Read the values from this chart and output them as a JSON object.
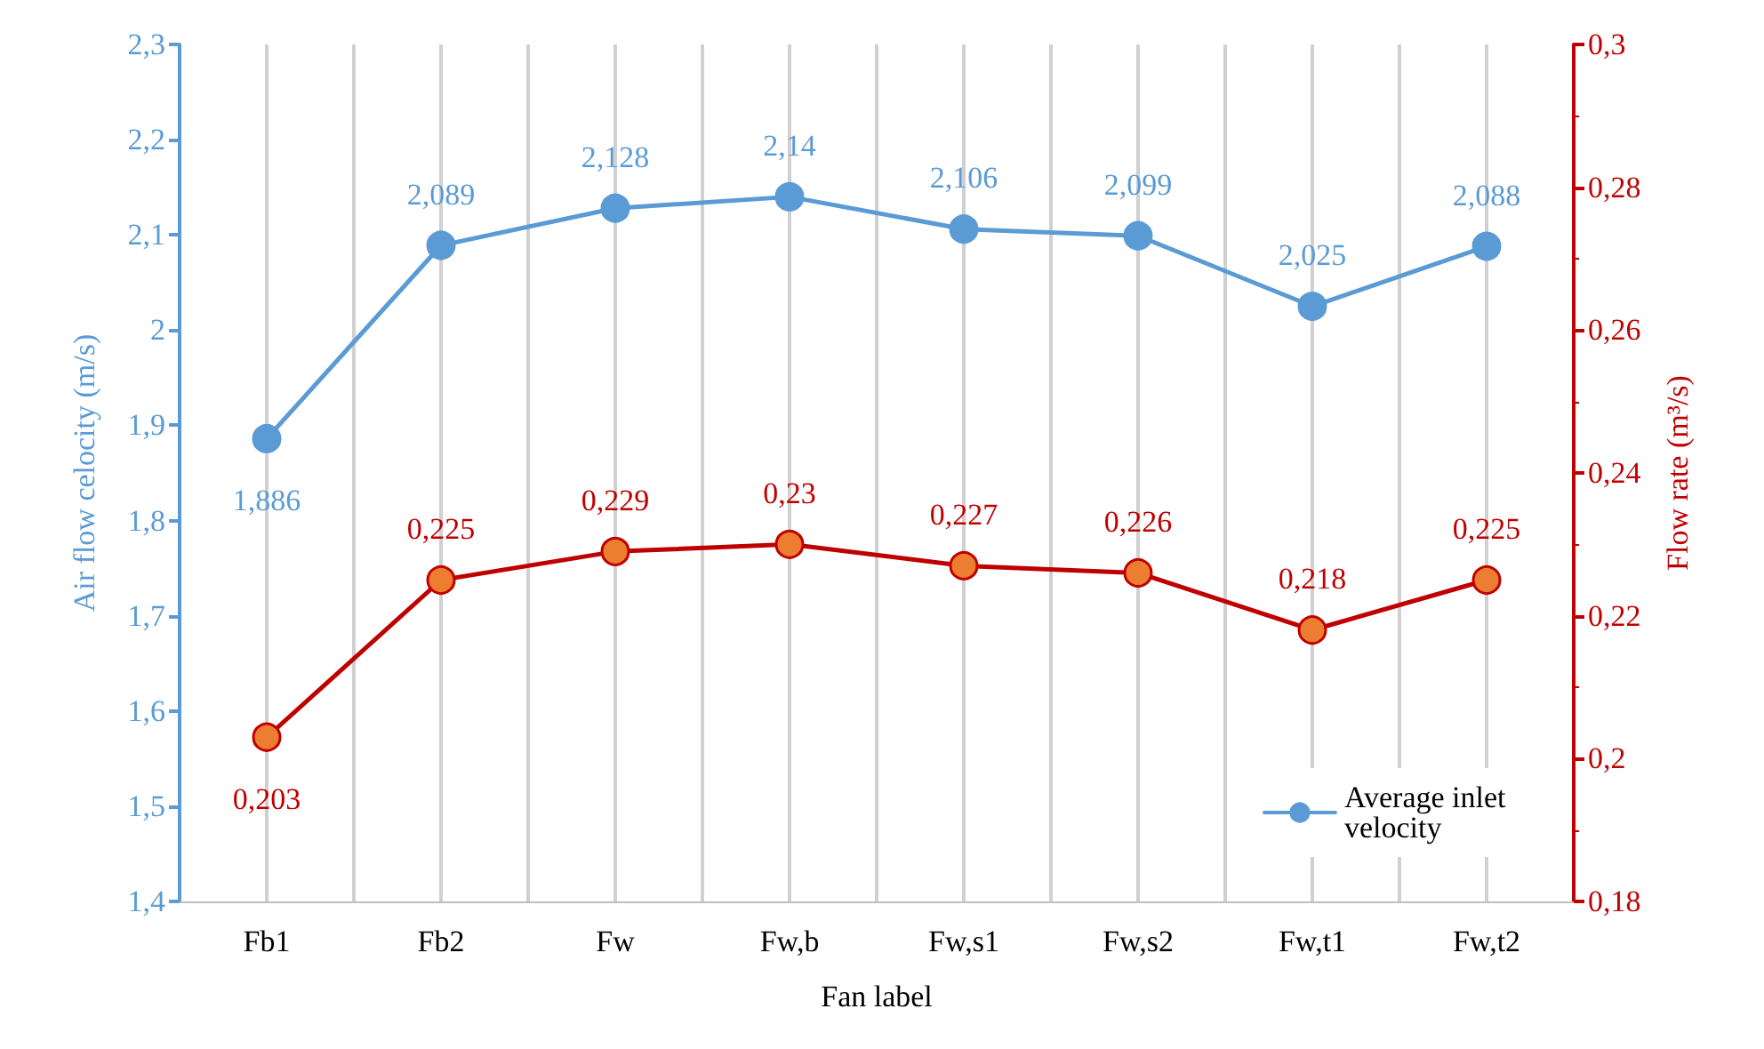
{
  "chart_data": {
    "type": "line",
    "xlabel": "Fan label",
    "ylabel": "Air flow celocity (m/s)",
    "y2label": "Flow rate (m³/s)",
    "categories": [
      "Fb1",
      "Fb2",
      "Fw",
      "Fw,b",
      "Fw,s1",
      "Fw,s2",
      "Fw,t1",
      "Fw,t2"
    ],
    "series": [
      {
        "name": "Average inlet velocity",
        "color": "#5b9bd5",
        "values": [
          1.886,
          2.089,
          2.128,
          2.14,
          2.106,
          2.099,
          2.025,
          2.088
        ],
        "value_labels": [
          "1,886",
          "2,089",
          "2,128",
          "2,14",
          "2,106",
          "2,099",
          "2,025",
          "2,088"
        ]
      },
      {
        "color": "#c00000",
        "colors": [
          "#ed7d31",
          "#ed7d31",
          "#ed7d31",
          "#ed7d31",
          "#ed7d31",
          "#ed7d31",
          "#ed7d31",
          "#ed7d31"
        ],
        "axis": "y2",
        "values": [
          0.203,
          0.225,
          0.229,
          0.23,
          0.227,
          0.226,
          0.218,
          0.225
        ],
        "value_labels": [
          "0,203",
          "0,225",
          "0,229",
          "0,23",
          "0,227",
          "0,226",
          "0,218",
          "0,225"
        ]
      }
    ],
    "ylim": [
      1.4,
      2.3
    ],
    "yticks": [
      {
        "value": 1.4,
        "label": "1,4"
      },
      {
        "value": 1.5,
        "label": "1,5"
      },
      {
        "value": 1.6,
        "label": "1,6"
      },
      {
        "value": 1.7,
        "label": "1,7"
      },
      {
        "value": 1.8,
        "label": "1,8"
      },
      {
        "value": 1.9,
        "label": "1,9"
      },
      2,
      {
        "value": 2.1,
        "label": "2,1"
      },
      {
        "value": 2.2,
        "label": "2,2"
      },
      {
        "value": 2.3,
        "label": "2,3"
      }
    ],
    "y2lim": [
      0.18,
      0.3
    ],
    "y2ticks": [
      {
        "value": 0.18,
        "label": "0,18"
      },
      {
        "value": 0.2,
        "label": "0,2"
      },
      {
        "value": 0.22,
        "label": "0,22"
      },
      {
        "value": 0.24,
        "label": "0,24"
      },
      {
        "value": 0.26,
        "label": "0,26"
      },
      {
        "value": 0.28,
        "label": "0,28"
      },
      {
        "value": 0.3,
        "label": "0,3"
      }
    ],
    "grid": "x",
    "legend": "bottom right",
    "marker": "circle",
    "line_style": "solid"
  }
}
